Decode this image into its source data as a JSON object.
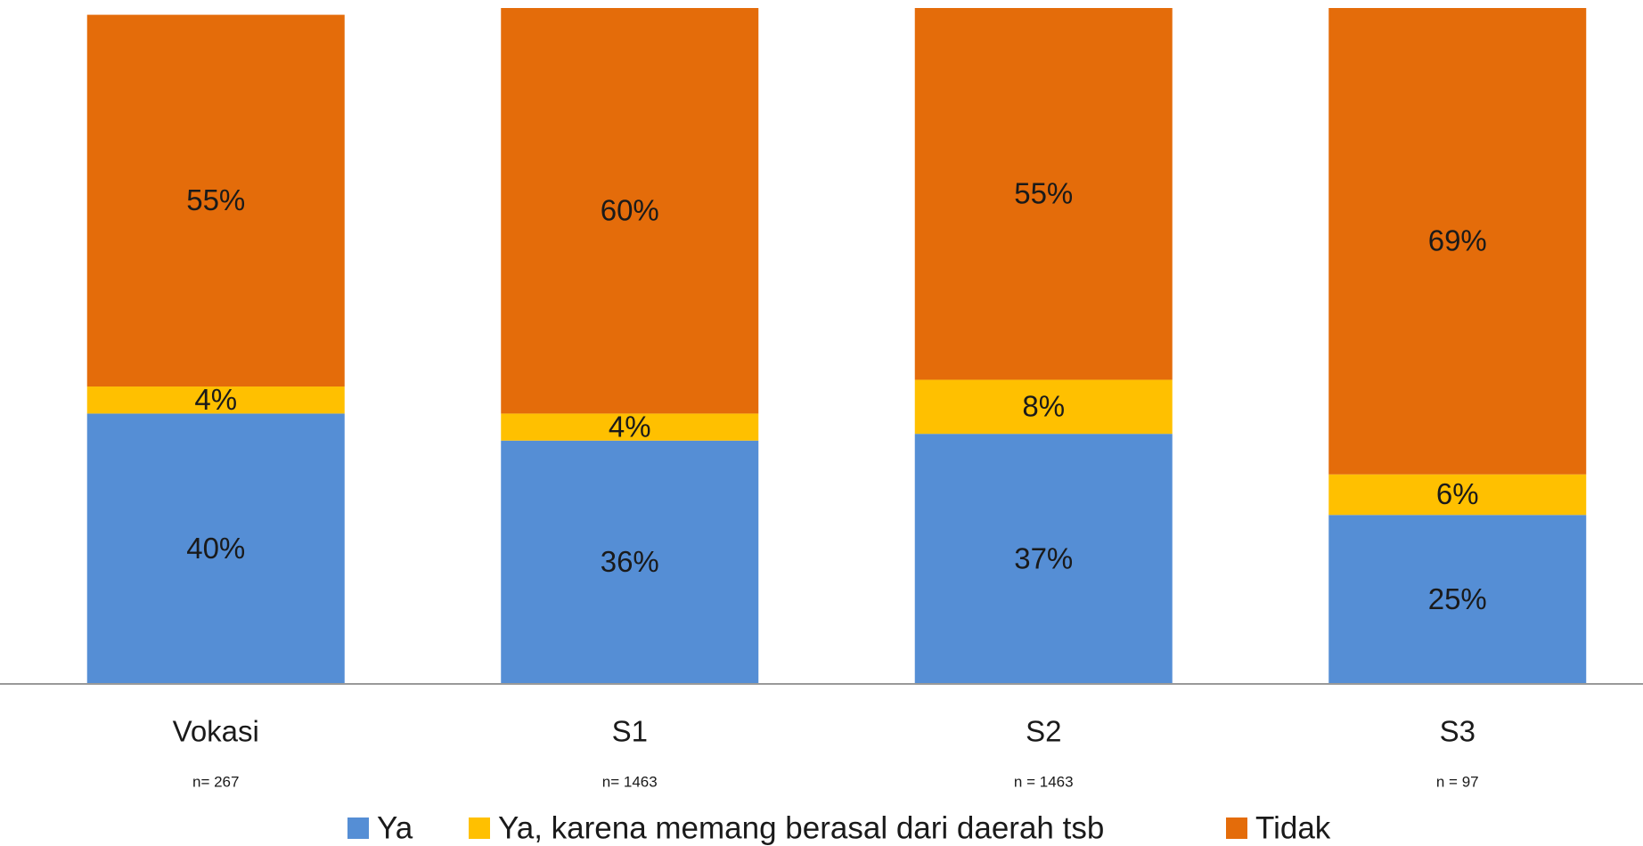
{
  "chart_data": {
    "type": "stacked_bar",
    "categories": [
      "Vokasi",
      "S1",
      "S2",
      "S3"
    ],
    "category_notes": [
      "n= 267",
      "n= 1463",
      "n = 1463",
      "n = 97"
    ],
    "series": [
      {
        "name": "Ya",
        "color": "#558ed5",
        "values": [
          40,
          36,
          37,
          25
        ],
        "value_labels": [
          "40%",
          "36%",
          "37%",
          "25%"
        ]
      },
      {
        "name": "Ya, karena memang berasal dari daerah tsb",
        "color": "#ffc000",
        "values": [
          4,
          4,
          8,
          6
        ],
        "value_labels": [
          "4%",
          "4%",
          "8%",
          "6%"
        ]
      },
      {
        "name": "Tidak",
        "color": "#e46c0a",
        "values": [
          55,
          60,
          55,
          69
        ],
        "value_labels": [
          "55%",
          "60%",
          "55%",
          "69%"
        ]
      }
    ],
    "ylim": [
      0,
      100
    ],
    "legend": "bottom"
  }
}
